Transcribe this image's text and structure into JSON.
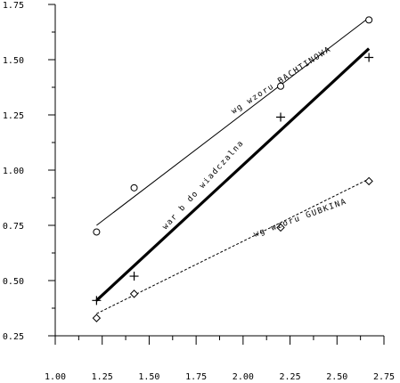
{
  "chart_data": {
    "type": "line",
    "title": "",
    "xlabel": "",
    "ylabel": "",
    "xlim": [
      1.0,
      2.75
    ],
    "ylim": [
      0.25,
      1.75
    ],
    "xticks": [
      "1.00",
      "1.25",
      "1.50",
      "1.75",
      "2.00",
      "2.25",
      "2.50",
      "2.75"
    ],
    "yticks": [
      "0.25",
      "0.50",
      "0.75",
      "1.00",
      "1.25",
      "1.50",
      "1.75"
    ],
    "grid": false,
    "series": [
      {
        "name": "wg wzoru BACHTINOWA",
        "marker": "circle",
        "points": [
          [
            1.22,
            0.72
          ],
          [
            1.42,
            0.92
          ],
          [
            2.2,
            1.38
          ],
          [
            2.67,
            1.68
          ]
        ],
        "fit_line": [
          [
            1.22,
            0.75
          ],
          [
            2.67,
            1.69
          ]
        ],
        "line_style": "solid",
        "line_weight": "thin"
      },
      {
        "name": "war b do wiadczalna",
        "marker": "plus",
        "points": [
          [
            1.22,
            0.41
          ],
          [
            1.42,
            0.52
          ],
          [
            2.2,
            1.24
          ],
          [
            2.67,
            1.51
          ]
        ],
        "fit_line": [
          [
            1.22,
            0.41
          ],
          [
            2.67,
            1.55
          ]
        ],
        "line_style": "solid",
        "line_weight": "thick"
      },
      {
        "name": "wg wzoru GUBKINA",
        "marker": "diamond",
        "points": [
          [
            1.22,
            0.33
          ],
          [
            1.42,
            0.44
          ],
          [
            2.2,
            0.74
          ],
          [
            2.67,
            0.95
          ]
        ],
        "fit_line": [
          [
            1.22,
            0.35
          ],
          [
            2.67,
            0.96
          ]
        ],
        "line_style": "dashed",
        "line_weight": "thin"
      }
    ]
  },
  "labels": {
    "bachtinowa": "wg wzoru BACHTINOWA",
    "doswiadczalna": "war b do wiadczalna",
    "gubkina": "wg wzoru GUBKINA"
  }
}
